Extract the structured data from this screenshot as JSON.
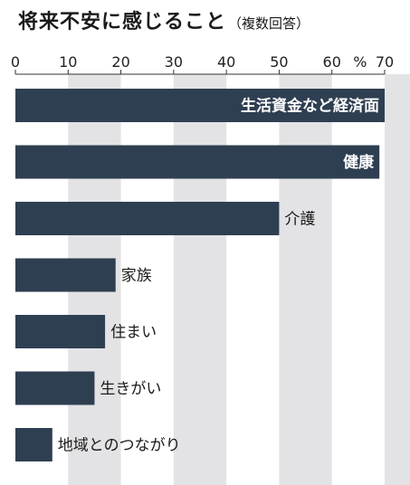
{
  "title": "将来不安に感じること",
  "subtitle": "（複数回答）",
  "chart_data": {
    "type": "bar",
    "orientation": "horizontal",
    "title": "将来不安に感じること",
    "subtitle": "（複数回答）",
    "unit": "%",
    "xlim": [
      0,
      70
    ],
    "xticks": [
      "0",
      "10",
      "20",
      "30",
      "40",
      "50",
      "60",
      "70"
    ],
    "categories": [
      "生活資金など経済面",
      "健康",
      "介護",
      "家族",
      "住まい",
      "生きがい",
      "地域とのつながり"
    ],
    "values": [
      70,
      69,
      50,
      19,
      17,
      15,
      7
    ],
    "label_inside": [
      true,
      true,
      false,
      false,
      false,
      false,
      false
    ],
    "bar_color": "#2f3f52",
    "band_color": "#e3e3e5",
    "grid": "alternating vertical bands"
  }
}
